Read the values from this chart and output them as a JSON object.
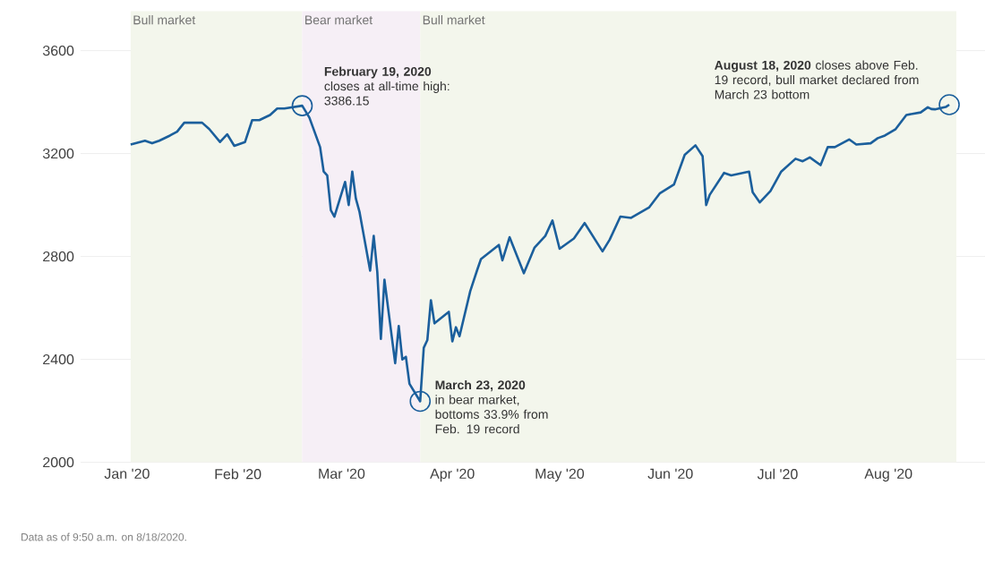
{
  "chart_data": {
    "type": "line",
    "x": [
      "2020-01-02",
      "2020-01-06",
      "2020-01-08",
      "2020-01-10",
      "2020-01-13",
      "2020-01-15",
      "2020-01-17",
      "2020-01-22",
      "2020-01-24",
      "2020-01-27",
      "2020-01-29",
      "2020-01-31",
      "2020-02-03",
      "2020-02-05",
      "2020-02-07",
      "2020-02-10",
      "2020-02-12",
      "2020-02-14",
      "2020-02-19",
      "2020-02-21",
      "2020-02-24",
      "2020-02-25",
      "2020-02-26",
      "2020-02-27",
      "2020-02-28",
      "2020-03-02",
      "2020-03-03",
      "2020-03-04",
      "2020-03-05",
      "2020-03-06",
      "2020-03-09",
      "2020-03-10",
      "2020-03-11",
      "2020-03-12",
      "2020-03-13",
      "2020-03-16",
      "2020-03-17",
      "2020-03-18",
      "2020-03-19",
      "2020-03-20",
      "2020-03-23",
      "2020-03-24",
      "2020-03-25",
      "2020-03-26",
      "2020-03-27",
      "2020-03-31",
      "2020-04-01",
      "2020-04-02",
      "2020-04-03",
      "2020-04-06",
      "2020-04-08",
      "2020-04-09",
      "2020-04-14",
      "2020-04-15",
      "2020-04-17",
      "2020-04-21",
      "2020-04-24",
      "2020-04-27",
      "2020-04-29",
      "2020-05-01",
      "2020-05-05",
      "2020-05-08",
      "2020-05-13",
      "2020-05-15",
      "2020-05-18",
      "2020-05-21",
      "2020-05-26",
      "2020-05-29",
      "2020-06-02",
      "2020-06-05",
      "2020-06-08",
      "2020-06-10",
      "2020-06-11",
      "2020-06-12",
      "2020-06-16",
      "2020-06-18",
      "2020-06-23",
      "2020-06-24",
      "2020-06-26",
      "2020-06-29",
      "2020-07-02",
      "2020-07-06",
      "2020-07-08",
      "2020-07-10",
      "2020-07-13",
      "2020-07-15",
      "2020-07-17",
      "2020-07-21",
      "2020-07-23",
      "2020-07-27",
      "2020-07-29",
      "2020-07-31",
      "2020-08-03",
      "2020-08-06",
      "2020-08-10",
      "2020-08-12",
      "2020-08-13",
      "2020-08-14",
      "2020-08-17",
      "2020-08-18"
    ],
    "series": [
      {
        "color": "#1b5f9c",
        "values": [
          3235,
          3250,
          3240,
          3250,
          3270,
          3285,
          3320,
          3320,
          3295,
          3245,
          3275,
          3230,
          3245,
          3330,
          3330,
          3350,
          3375,
          3375,
          3386,
          3340,
          3225,
          3130,
          3115,
          2980,
          2955,
          3090,
          3000,
          3130,
          3025,
          2975,
          2745,
          2880,
          2740,
          2480,
          2710,
          2385,
          2530,
          2400,
          2410,
          2305,
          2237,
          2445,
          2475,
          2630,
          2540,
          2585,
          2470,
          2525,
          2490,
          2665,
          2750,
          2790,
          2845,
          2785,
          2875,
          2735,
          2835,
          2880,
          2940,
          2830,
          2870,
          2930,
          2820,
          2865,
          2955,
          2950,
          2990,
          3045,
          3080,
          3195,
          3232,
          3190,
          3000,
          3040,
          3125,
          3115,
          3130,
          3050,
          3010,
          3055,
          3130,
          3180,
          3170,
          3185,
          3155,
          3225,
          3225,
          3255,
          3235,
          3240,
          3260,
          3270,
          3295,
          3350,
          3360,
          3380,
          3373,
          3372,
          3381,
          3390
        ]
      }
    ],
    "xlim": [
      "2019-12-19",
      "2020-08-28"
    ],
    "xticks": [
      {
        "value": "2020-01-01",
        "label": "Jan '20"
      },
      {
        "value": "2020-02-01",
        "label": "Feb '20"
      },
      {
        "value": "2020-03-01",
        "label": "Mar '20"
      },
      {
        "value": "2020-04-01",
        "label": "Apr '20"
      },
      {
        "value": "2020-05-01",
        "label": "May '20"
      },
      {
        "value": "2020-06-01",
        "label": "Jun '20"
      },
      {
        "value": "2020-07-01",
        "label": "Jul '20"
      },
      {
        "value": "2020-08-01",
        "label": "Aug '20"
      }
    ],
    "ylim": [
      2000,
      3600
    ],
    "yticks": [
      2000,
      2400,
      2800,
      3200,
      3600
    ],
    "grid": "y",
    "bands": [
      {
        "axis": "x",
        "from": "2020-01-02",
        "to": "2020-02-19",
        "label": "Bull market",
        "color": "#f3f6ec"
      },
      {
        "axis": "x",
        "from": "2020-02-19",
        "to": "2020-03-23",
        "label": "Bear market",
        "color": "#f6eff6"
      },
      {
        "axis": "x",
        "from": "2020-03-23",
        "to": "2020-08-20",
        "label": "Bull market",
        "color": "#f3f6ec"
      }
    ],
    "annotations": [
      {
        "text": "**February 19, 2020** closes at all-time high: 3386.15",
        "x": "2020-02-19",
        "y": 3386
      },
      {
        "text": "**March 23, 2020** in bear market, bottoms 33.9% from Feb. 19 record",
        "x": "2020-03-23",
        "y": 2237
      },
      {
        "text": "**August 18, 2020** closes above Feb. 19 record, bull market declared from March 23 bottom",
        "x": "2020-08-18",
        "y": 3390
      },
      "Data as of 9:50 a.m. on 8/18/2020."
    ]
  }
}
